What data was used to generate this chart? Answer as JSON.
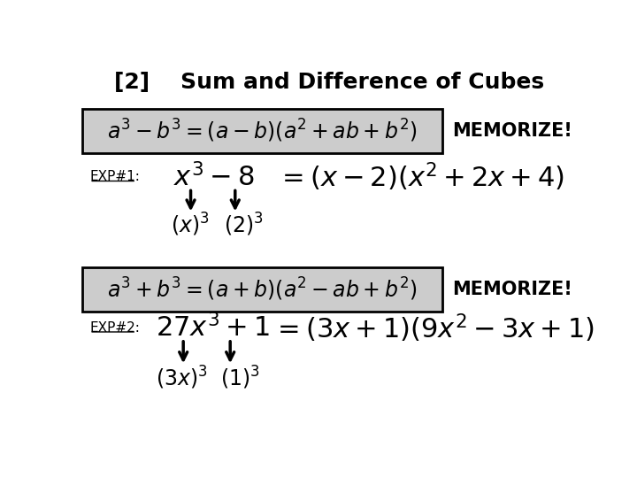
{
  "title": "[2]    Sum and Difference of Cubes",
  "title_fontsize": 18,
  "background_color": "#ffffff",
  "box1_bg": "#cccccc",
  "box2_bg": "#cccccc",
  "memorize1": "MEMORIZE!",
  "memorize2": "MEMORIZE!",
  "exp1_label": "EXP#1:",
  "exp2_label": "EXP#2:"
}
